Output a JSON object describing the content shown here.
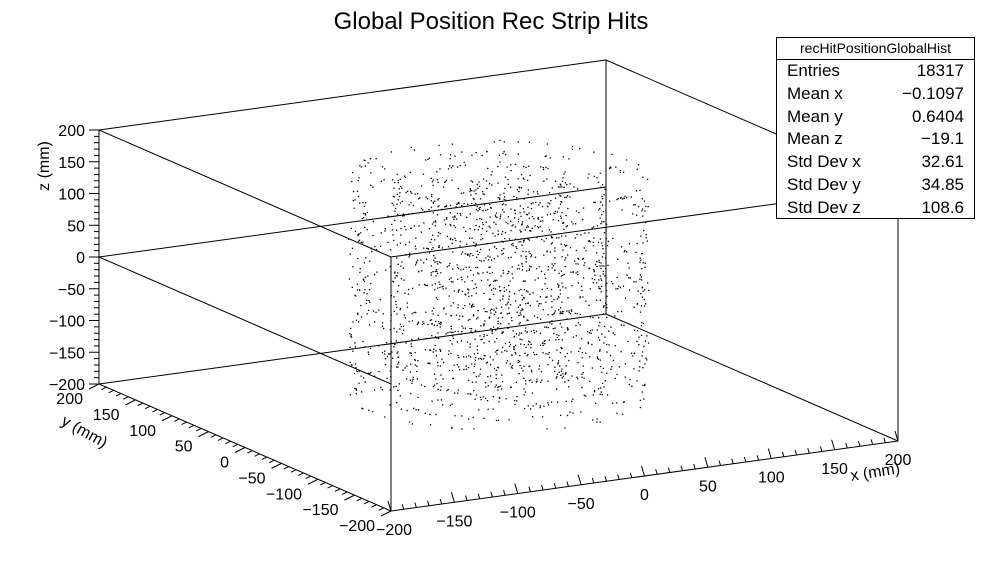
{
  "chart_data": {
    "type": "scatter",
    "dimensions": 3,
    "title": "Global Position Rec Strip Hits",
    "xlabel": "x (mm)",
    "ylabel": "y (mm)",
    "zlabel": "z (mm)",
    "xlim": [
      -200,
      200
    ],
    "ylim": [
      -200,
      200
    ],
    "zlim": [
      -200,
      200
    ],
    "x_ticks": [
      "−200",
      "−150",
      "−100",
      "−50",
      "0",
      "50",
      "100",
      "150",
      "200"
    ],
    "y_ticks": [
      "−200",
      "−150",
      "−100",
      "−50",
      "0",
      "50",
      "100",
      "150",
      "200"
    ],
    "z_ticks": [
      "−200",
      "−150",
      "−100",
      "−50",
      "0",
      "50",
      "100",
      "150",
      "200"
    ],
    "x_tick_values": [
      -200,
      -150,
      -100,
      -50,
      0,
      50,
      100,
      150,
      200
    ],
    "y_tick_values": [
      -200,
      -150,
      -100,
      -50,
      0,
      50,
      100,
      150,
      200
    ],
    "z_tick_values": [
      -200,
      -150,
      -100,
      -50,
      0,
      50,
      100,
      150,
      200
    ],
    "marker_color": "#000000",
    "distribution": {
      "shape": "concentric cylindrical shells (hollow barrel)",
      "radii": [
        20,
        45,
        72,
        100
      ],
      "z_range": [
        -170,
        170
      ],
      "z_layer_spacing": 20
    },
    "stats_box": {
      "name": "recHitPositionGlobalHist",
      "entries": [
        {
          "label": "Entries",
          "value": "18317"
        },
        {
          "label": "Mean x",
          "value": "−0.1097"
        },
        {
          "label": "Mean y",
          "value": "0.6404"
        },
        {
          "label": "Mean z",
          "value": "−19.1"
        },
        {
          "label": "Std Dev x",
          "value": "32.61"
        },
        {
          "label": "Std Dev y",
          "value": "34.85"
        },
        {
          "label": "Std Dev z",
          "value": "108.6"
        }
      ]
    }
  }
}
